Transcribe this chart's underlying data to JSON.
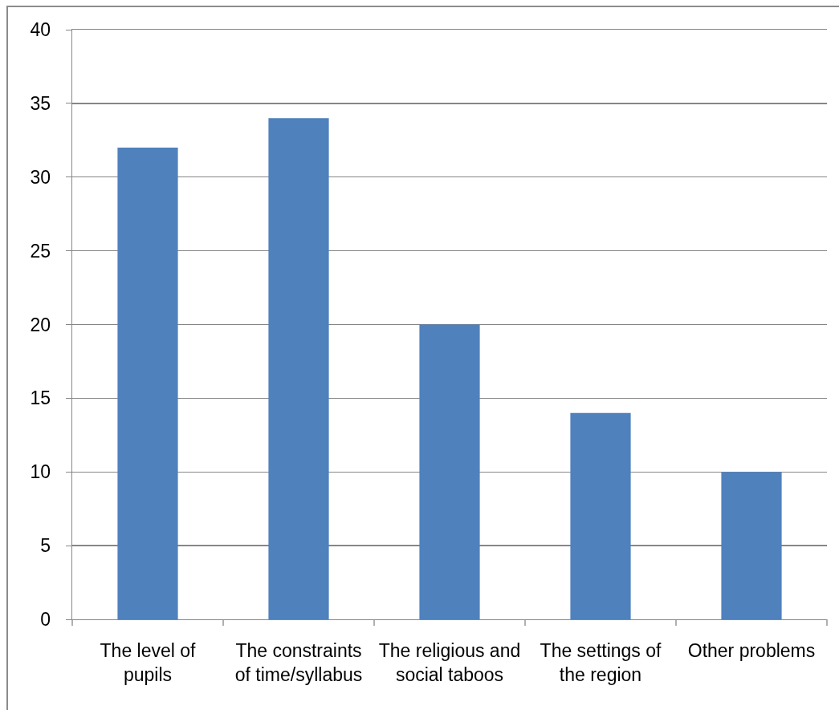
{
  "chart_data": {
    "type": "bar",
    "categories": [
      "The level of pupils",
      "The constraints of time/syllabus",
      "The religious and social taboos",
      "The settings of the region",
      "Other problems"
    ],
    "values": [
      32,
      34,
      20,
      14,
      10
    ],
    "color": "#4f81bd",
    "ylim": [
      0,
      40
    ],
    "yticks": [
      0,
      5,
      10,
      15,
      20,
      25,
      30,
      35,
      40
    ],
    "grid": "y"
  }
}
